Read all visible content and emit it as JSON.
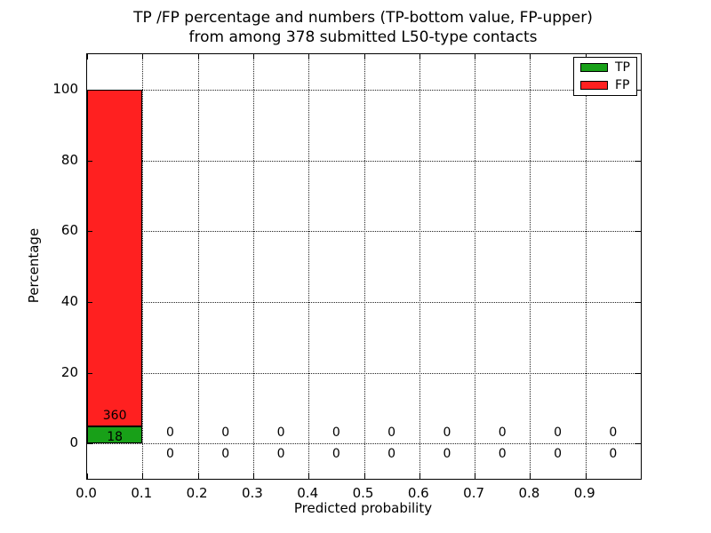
{
  "figure": {
    "title_line1": "TP /FP percentage and numbers (TP-bottom value, FP-upper)",
    "title_line2": "from among 378 submitted L50-type contacts"
  },
  "chart_data": {
    "type": "bar",
    "stacked": true,
    "title": "TP /FP percentage and numbers (TP-bottom value, FP-upper)\nfrom among 378 submitted L50-type contacts",
    "xlabel": "Predicted probability",
    "ylabel": "Percentage",
    "xlim": [
      0.0,
      1.0
    ],
    "ylim": [
      -10,
      110
    ],
    "x_tick_values": [
      0.0,
      0.1,
      0.2,
      0.3,
      0.4,
      0.5,
      0.6,
      0.7,
      0.8,
      0.9
    ],
    "x_tick_labels": [
      "0.0",
      "0.1",
      "0.2",
      "0.3",
      "0.4",
      "0.5",
      "0.6",
      "0.7",
      "0.8",
      "0.9"
    ],
    "y_tick_values": [
      0,
      20,
      40,
      60,
      80,
      100
    ],
    "y_tick_labels": [
      "0",
      "20",
      "40",
      "60",
      "80",
      "100"
    ],
    "grid": true,
    "grid_style": "dotted",
    "legend_position": "upper right",
    "total_contacts": 378,
    "label_offset_pct": 3,
    "series": [
      {
        "name": "TP",
        "color": "#18a018"
      },
      {
        "name": "FP",
        "color": "#ff2020"
      }
    ],
    "categories": [
      "0.0-0.1",
      "0.1-0.2",
      "0.2-0.3",
      "0.3-0.4",
      "0.4-0.5",
      "0.5-0.6",
      "0.6-0.7",
      "0.7-0.8",
      "0.8-0.9",
      "0.9-1.0"
    ],
    "bins": [
      {
        "x_range": [
          0.0,
          0.1
        ],
        "tp": 18,
        "fp": 360,
        "tp_pct": 4.76,
        "fp_pct": 95.24
      },
      {
        "x_range": [
          0.1,
          0.2
        ],
        "tp": 0,
        "fp": 0,
        "tp_pct": 0,
        "fp_pct": 0
      },
      {
        "x_range": [
          0.2,
          0.3
        ],
        "tp": 0,
        "fp": 0,
        "tp_pct": 0,
        "fp_pct": 0
      },
      {
        "x_range": [
          0.3,
          0.4
        ],
        "tp": 0,
        "fp": 0,
        "tp_pct": 0,
        "fp_pct": 0
      },
      {
        "x_range": [
          0.4,
          0.5
        ],
        "tp": 0,
        "fp": 0,
        "tp_pct": 0,
        "fp_pct": 0
      },
      {
        "x_range": [
          0.5,
          0.6
        ],
        "tp": 0,
        "fp": 0,
        "tp_pct": 0,
        "fp_pct": 0
      },
      {
        "x_range": [
          0.6,
          0.7
        ],
        "tp": 0,
        "fp": 0,
        "tp_pct": 0,
        "fp_pct": 0
      },
      {
        "x_range": [
          0.7,
          0.8
        ],
        "tp": 0,
        "fp": 0,
        "tp_pct": 0,
        "fp_pct": 0
      },
      {
        "x_range": [
          0.8,
          0.9
        ],
        "tp": 0,
        "fp": 0,
        "tp_pct": 0,
        "fp_pct": 0
      },
      {
        "x_range": [
          0.9,
          1.0
        ],
        "tp": 0,
        "fp": 0,
        "tp_pct": 0,
        "fp_pct": 0
      }
    ]
  }
}
